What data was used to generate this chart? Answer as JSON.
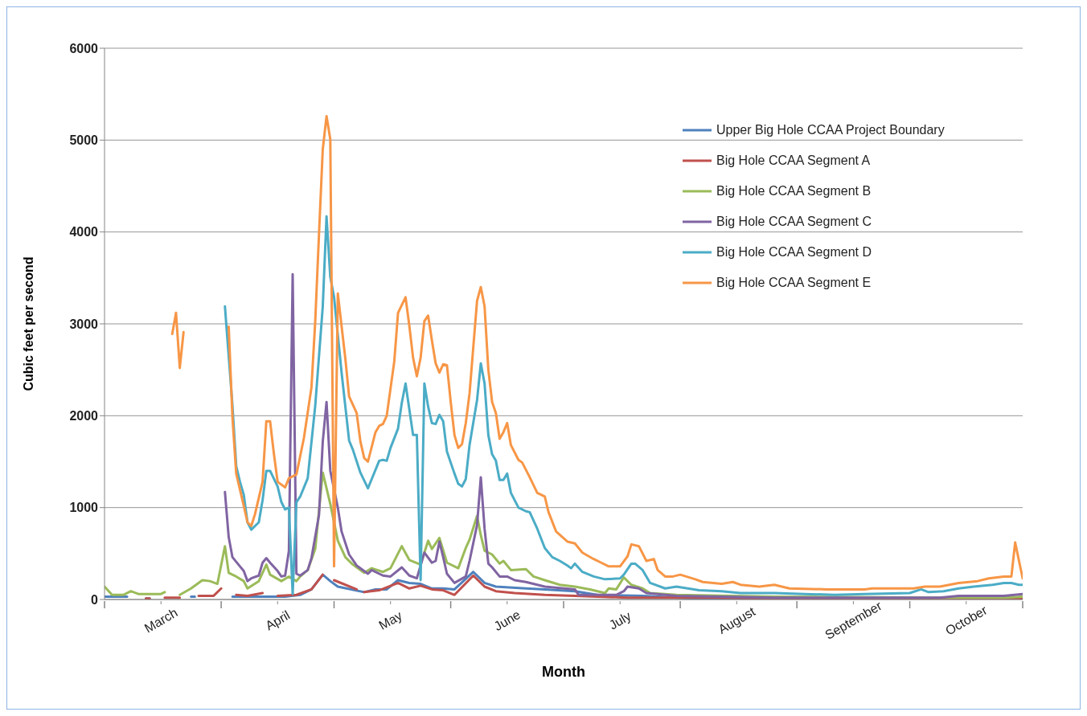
{
  "chart_data": {
    "type": "line",
    "xlabel": "Month",
    "ylabel": "Cubic feet per second",
    "xlim": [
      "--03-01",
      "--10-31"
    ],
    "xticks": [
      {
        "value": "--03-01",
        "label": null
      },
      {
        "value": "--03-16",
        "label": "March"
      },
      {
        "value": "--04-01",
        "label": null
      },
      {
        "value": "--04-16",
        "label": "April"
      },
      {
        "value": "--05-01",
        "label": null
      },
      {
        "value": "--05-16",
        "label": "May"
      },
      {
        "value": "--06-01",
        "label": null
      },
      {
        "value": "--06-16",
        "label": "June"
      },
      {
        "value": "--07-01",
        "label": null
      },
      {
        "value": "--07-16",
        "label": "July"
      },
      {
        "value": "--08-01",
        "label": null
      },
      {
        "value": "--08-16",
        "label": "August"
      },
      {
        "value": "--09-01",
        "label": null
      },
      {
        "value": "--09-16",
        "label": "September"
      },
      {
        "value": "--10-01",
        "label": null
      },
      {
        "value": "--10-16",
        "label": "October"
      },
      {
        "value": "--10-31",
        "label": null
      }
    ],
    "ylim": [
      0,
      6000
    ],
    "yticks": [
      0,
      1000,
      2000,
      3000,
      4000,
      5000,
      6000
    ],
    "grid": "y",
    "legend": "top right",
    "series": [
      {
        "name": "Upper Big Hole CCAA Project Boundary",
        "color": "#4f81bd",
        "x": [
          "--03-01",
          "--03-07",
          "--03-08",
          "--03-12",
          "--03-13",
          "--03-14",
          "--03-24",
          "--03-25",
          "--03-26",
          "--04-04",
          "--04-18",
          "--04-22",
          "--04-25",
          "--04-28",
          "--04-30",
          "--05-02",
          "--05-09",
          "--05-12",
          "--05-15",
          "--05-18",
          "--05-21",
          "--05-24",
          "--05-27",
          "--05-30",
          "--06-02",
          "--06-07",
          "--06-10",
          "--06-13",
          "--06-21",
          "--06-26",
          "--07-04",
          "--07-10",
          "--07-22",
          "--08-05",
          "--10-31"
        ],
        "values": [
          30,
          30,
          null,
          10,
          10,
          null,
          30,
          30,
          null,
          30,
          30,
          50,
          110,
          270,
          200,
          140,
          80,
          110,
          110,
          210,
          180,
          170,
          120,
          120,
          110,
          300,
          180,
          140,
          120,
          110,
          90,
          50,
          40,
          10,
          10
        ]
      },
      {
        "name": "Big Hole CCAA Segment A",
        "color": "#c0504d",
        "x": [
          "--03-12",
          "--03-13",
          "--03-14",
          "--03-17",
          "--03-21",
          "--03-22",
          "--03-26",
          "--03-30",
          "--04-01",
          "--04-02",
          "--04-05",
          "--04-08",
          "--04-12",
          "--04-14",
          "--04-16",
          "--04-21",
          "--04-25",
          "--04-28",
          "--04-29",
          "--05-01",
          "--05-07",
          "--05-08",
          "--05-09",
          "--05-13",
          "--05-18",
          "--05-21",
          "--05-24",
          "--05-27",
          "--05-30",
          "--06-02",
          "--06-07",
          "--06-10",
          "--06-13",
          "--06-18",
          "--06-26",
          "--07-04",
          "--07-18",
          "--08-10",
          "--08-26",
          "--09-15",
          "--10-15",
          "--10-31"
        ],
        "values": [
          10,
          10,
          null,
          20,
          20,
          null,
          40,
          40,
          120,
          null,
          50,
          40,
          70,
          null,
          40,
          50,
          110,
          270,
          null,
          210,
          110,
          null,
          80,
          100,
          180,
          120,
          150,
          110,
          100,
          50,
          260,
          140,
          90,
          70,
          50,
          40,
          20,
          20,
          10,
          10,
          10,
          10
        ]
      },
      {
        "name": "Big Hole CCAA Segment B",
        "color": "#9bbb59",
        "x": [
          "--03-01",
          "--03-03",
          "--03-06",
          "--03-08",
          "--03-10",
          "--03-16",
          "--03-17",
          "--03-18",
          "--03-21",
          "--03-24",
          "--03-27",
          "--03-29",
          "--03-31",
          "--04-02",
          "--04-03",
          "--04-05",
          "--04-07",
          "--04-08",
          "--04-11",
          "--04-13",
          "--04-14",
          "--04-17",
          "--04-19",
          "--04-21",
          "--04-22",
          "--04-24",
          "--04-26",
          "--04-28",
          "--04-30",
          "--05-02",
          "--05-04",
          "--05-06",
          "--05-09",
          "--05-11",
          "--05-14",
          "--05-16",
          "--05-19",
          "--05-21",
          "--05-24",
          "--05-26",
          "--05-27",
          "--05-29",
          "--05-31",
          "--06-03",
          "--06-05",
          "--06-06",
          "--06-08",
          "--06-09",
          "--06-10",
          "--06-12",
          "--06-14",
          "--06-15",
          "--06-17",
          "--06-21",
          "--06-23",
          "--06-26",
          "--06-30",
          "--07-04",
          "--07-08",
          "--07-12",
          "--07-13",
          "--07-15",
          "--07-17",
          "--07-19",
          "--07-22",
          "--07-24",
          "--07-31",
          "--08-26",
          "--10-09",
          "--10-26",
          "--10-31"
        ],
        "values": [
          140,
          50,
          50,
          90,
          60,
          60,
          80,
          null,
          50,
          120,
          210,
          200,
          170,
          580,
          290,
          250,
          200,
          120,
          200,
          380,
          270,
          200,
          250,
          200,
          250,
          320,
          550,
          1380,
          1040,
          640,
          460,
          380,
          290,
          340,
          300,
          340,
          580,
          430,
          380,
          640,
          550,
          670,
          400,
          340,
          560,
          650,
          910,
          700,
          530,
          490,
          390,
          420,
          320,
          330,
          250,
          210,
          160,
          140,
          110,
          70,
          120,
          110,
          240,
          160,
          120,
          70,
          50,
          30,
          20,
          20,
          30
        ]
      },
      {
        "name": "Big Hole CCAA Segment C",
        "color": "#8064a2",
        "x": [
          "--04-02",
          "--04-03",
          "--04-04",
          "--04-06",
          "--04-07",
          "--04-08",
          "--04-09",
          "--04-11",
          "--04-12",
          "--04-13",
          "--04-14",
          "--04-16",
          "--04-17",
          "--04-18",
          "--04-19",
          "--04-20",
          "--04-21",
          "--04-22",
          "--04-24",
          "--04-25",
          "--04-27",
          "--04-28",
          "--04-29",
          "--04-30",
          "--05-02",
          "--05-03",
          "--05-05",
          "--05-07",
          "--05-10",
          "--05-11",
          "--05-14",
          "--05-16",
          "--05-19",
          "--05-21",
          "--05-23",
          "--05-25",
          "--05-27",
          "--05-28",
          "--05-29",
          "--05-30",
          "--05-31",
          "--06-02",
          "--06-05",
          "--06-06",
          "--06-08",
          "--06-09",
          "--06-10",
          "--06-11",
          "--06-12",
          "--06-14",
          "--06-16",
          "--06-18",
          "--06-21",
          "--06-26",
          "--07-04",
          "--07-05",
          "--07-15",
          "--07-17",
          "--07-18",
          "--07-21",
          "--07-23",
          "--07-31",
          "--08-26",
          "--10-09",
          "--10-14",
          "--10-26",
          "--10-31"
        ],
        "values": [
          1170,
          680,
          460,
          360,
          310,
          200,
          230,
          260,
          400,
          450,
          400,
          310,
          250,
          260,
          530,
          3540,
          280,
          260,
          320,
          450,
          920,
          1720,
          2150,
          1400,
          1000,
          740,
          490,
          370,
          280,
          320,
          260,
          250,
          350,
          260,
          230,
          510,
          400,
          420,
          630,
          460,
          280,
          180,
          250,
          420,
          810,
          1330,
          770,
          390,
          350,
          250,
          250,
          210,
          190,
          140,
          110,
          50,
          50,
          90,
          140,
          120,
          70,
          40,
          20,
          20,
          40,
          40,
          60
        ]
      },
      {
        "name": "Big Hole CCAA Segment D",
        "color": "#4bacc6",
        "x": [
          "--04-02",
          "--04-04",
          "--04-05",
          "--04-06",
          "--04-07",
          "--04-08",
          "--04-09",
          "--04-11",
          "--04-12",
          "--04-13",
          "--04-14",
          "--04-16",
          "--04-17",
          "--04-18",
          "--04-19",
          "--04-20",
          "--04-21",
          "--04-22",
          "--04-24",
          "--04-26",
          "--04-28",
          "--04-29",
          "--04-30",
          "--05-01",
          "--05-03",
          "--05-05",
          "--05-06",
          "--05-08",
          "--05-10",
          "--05-11",
          "--05-13",
          "--05-14",
          "--05-15",
          "--05-16",
          "--05-18",
          "--05-19",
          "--05-20",
          "--05-21",
          "--05-22",
          "--05-23",
          "--05-24",
          "--05-25",
          "--05-26",
          "--05-27",
          "--05-28",
          "--05-29",
          "--05-30",
          "--05-31",
          "--06-02",
          "--06-03",
          "--06-04",
          "--06-05",
          "--06-06",
          "--06-08",
          "--06-09",
          "--06-10",
          "--06-11",
          "--06-12",
          "--06-13",
          "--06-14",
          "--06-15",
          "--06-16",
          "--06-17",
          "--06-19",
          "--06-21",
          "--06-22",
          "--06-24",
          "--06-26",
          "--06-28",
          "--06-30",
          "--07-02",
          "--07-03",
          "--07-04",
          "--07-06",
          "--07-09",
          "--07-12",
          "--07-16",
          "--07-17",
          "--07-19",
          "--07-20",
          "--07-22",
          "--07-24",
          "--07-28",
          "--07-31",
          "--08-03",
          "--08-06",
          "--08-12",
          "--08-17",
          "--08-26",
          "--09-03",
          "--09-11",
          "--09-19",
          "--10-01",
          "--10-04",
          "--10-06",
          "--10-10",
          "--10-14",
          "--10-18",
          "--10-23",
          "--10-26",
          "--10-28",
          "--10-30",
          "--10-31"
        ],
        "values": [
          3190,
          2110,
          1450,
          1280,
          1140,
          840,
          760,
          840,
          1080,
          1400,
          1400,
          1230,
          1060,
          980,
          1000,
          60,
          1060,
          1120,
          1320,
          2110,
          3190,
          4170,
          3510,
          3290,
          2470,
          1730,
          1630,
          1380,
          1210,
          1310,
          1510,
          1520,
          1510,
          1650,
          1860,
          2140,
          2350,
          2070,
          1790,
          1790,
          210,
          2350,
          2100,
          1920,
          1910,
          2010,
          1940,
          1610,
          1370,
          1260,
          1230,
          1310,
          1680,
          2170,
          2570,
          2350,
          1790,
          1580,
          1510,
          1300,
          1300,
          1370,
          1160,
          1000,
          960,
          950,
          770,
          560,
          460,
          420,
          370,
          340,
          390,
          300,
          250,
          220,
          230,
          270,
          390,
          390,
          320,
          180,
          120,
          140,
          120,
          100,
          90,
          70,
          70,
          60,
          50,
          60,
          70,
          110,
          80,
          90,
          120,
          140,
          160,
          180,
          180,
          160,
          160
        ]
      },
      {
        "name": "Big Hole CCAA Segment E",
        "color": "#f79646",
        "x": [
          "--03-19",
          "--03-20",
          "--03-21",
          "--03-22",
          "--03-25",
          "--04-03",
          "--04-04",
          "--04-05",
          "--04-07",
          "--04-08",
          "--04-09",
          "--04-10",
          "--04-12",
          "--04-13",
          "--04-14",
          "--04-15",
          "--04-16",
          "--04-18",
          "--04-19",
          "--04-21",
          "--04-23",
          "--04-25",
          "--04-26",
          "--04-27",
          "--04-28",
          "--04-29",
          "--04-30",
          "--05-01",
          "--05-02",
          "--05-04",
          "--05-05",
          "--05-07",
          "--05-08",
          "--05-09",
          "--05-10",
          "--05-12",
          "--05-13",
          "--05-14",
          "--05-15",
          "--05-17",
          "--05-18",
          "--05-20",
          "--05-21",
          "--05-22",
          "--05-23",
          "--05-24",
          "--05-25",
          "--05-26",
          "--05-27",
          "--05-28",
          "--05-29",
          "--05-30",
          "--05-31",
          "--06-01",
          "--06-02",
          "--06-03",
          "--06-04",
          "--06-05",
          "--06-06",
          "--06-08",
          "--06-09",
          "--06-10",
          "--06-11",
          "--06-12",
          "--06-13",
          "--06-14",
          "--06-15",
          "--06-16",
          "--06-17",
          "--06-19",
          "--06-20",
          "--06-22",
          "--06-24",
          "--06-26",
          "--06-27",
          "--06-29",
          "--07-02",
          "--07-04",
          "--07-06",
          "--07-09",
          "--07-11",
          "--07-13",
          "--07-16",
          "--07-18",
          "--07-19",
          "--07-21",
          "--07-23",
          "--07-25",
          "--07-26",
          "--07-28",
          "--07-30",
          "--08-01",
          "--08-05",
          "--08-07",
          "--08-12",
          "--08-15",
          "--08-17",
          "--08-22",
          "--08-26",
          "--08-30",
          "--09-09",
          "--09-19",
          "--09-21",
          "--09-27",
          "--10-02",
          "--10-05",
          "--10-09",
          "--10-14",
          "--10-19",
          "--10-22",
          "--10-26",
          "--10-28",
          "--10-29",
          "--10-31"
        ],
        "values": [
          2890,
          3120,
          2520,
          2910,
          null,
          2970,
          1980,
          1370,
          1020,
          840,
          800,
          930,
          1280,
          1940,
          1940,
          1590,
          1280,
          1220,
          1320,
          1360,
          1760,
          2310,
          3030,
          3980,
          4900,
          5260,
          5010,
          360,
          3330,
          2620,
          2210,
          2030,
          1720,
          1540,
          1500,
          1820,
          1890,
          1910,
          2000,
          2590,
          3120,
          3290,
          2980,
          2630,
          2430,
          2630,
          3030,
          3090,
          2820,
          2570,
          2470,
          2560,
          2550,
          2150,
          1790,
          1650,
          1690,
          1920,
          2240,
          3250,
          3400,
          3190,
          2500,
          2150,
          2030,
          1750,
          1820,
          1920,
          1680,
          1520,
          1490,
          1330,
          1160,
          1120,
          950,
          740,
          630,
          610,
          510,
          440,
          400,
          360,
          360,
          470,
          600,
          580,
          420,
          440,
          320,
          250,
          250,
          270,
          220,
          190,
          170,
          190,
          160,
          140,
          160,
          120,
          110,
          110,
          120,
          120,
          120,
          140,
          140,
          180,
          200,
          230,
          250,
          250,
          620,
          230
        ]
      }
    ]
  }
}
